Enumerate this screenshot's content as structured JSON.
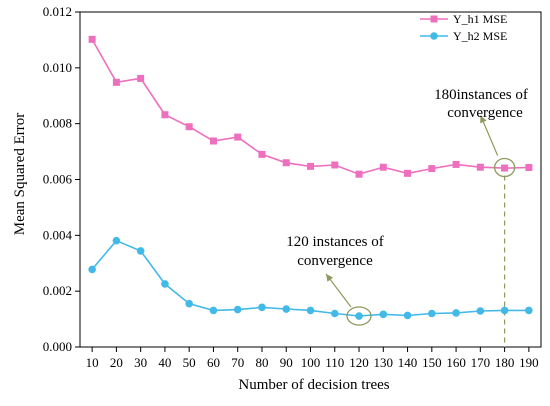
{
  "chart_data": {
    "type": "line",
    "xlabel": "Number of decision trees",
    "ylabel": "Mean Squared Error",
    "x": [
      10,
      20,
      30,
      40,
      50,
      60,
      70,
      80,
      90,
      100,
      110,
      120,
      130,
      140,
      150,
      160,
      170,
      180,
      190
    ],
    "x_ticks": [
      "10",
      "20",
      "30",
      "40",
      "50",
      "60",
      "70",
      "80",
      "90",
      "100",
      "110",
      "120",
      "130",
      "140",
      "150",
      "160",
      "170",
      "180",
      "190"
    ],
    "xlim": [
      5,
      195
    ],
    "ylim": [
      0,
      0.012
    ],
    "y_ticks": [
      "0.000",
      "0.002",
      "0.004",
      "0.006",
      "0.008",
      "0.010",
      "0.012"
    ],
    "grid": false,
    "legend_position": "top-right",
    "series": [
      {
        "name": "Y_h1 MSE",
        "color": "#ee6fbe",
        "marker": "square",
        "values": [
          0.01102,
          0.00948,
          0.00962,
          0.00832,
          0.00789,
          0.00738,
          0.00752,
          0.0069,
          0.0066,
          0.00647,
          0.00652,
          0.00619,
          0.00644,
          0.00622,
          0.00639,
          0.00654,
          0.00644,
          0.00641,
          0.00643
        ]
      },
      {
        "name": "Y_h2 MSE",
        "color": "#43b9e8",
        "marker": "circle",
        "values": [
          0.00278,
          0.00381,
          0.00344,
          0.00226,
          0.00155,
          0.00131,
          0.00134,
          0.00142,
          0.00136,
          0.00131,
          0.0012,
          0.00111,
          0.00117,
          0.00113,
          0.0012,
          0.00122,
          0.00129,
          0.00131,
          0.00131
        ]
      }
    ],
    "annotations": [
      {
        "line1": "180instances of",
        "line2": "convergence",
        "x": 180,
        "y": 0.00643,
        "target_series": "Y_h1 MSE"
      },
      {
        "line1": "120 instances of",
        "line2": "convergence",
        "x": 120,
        "y": 0.00111,
        "target_series": "Y_h2 MSE"
      }
    ],
    "annotation_color": "#8c9a5e"
  }
}
